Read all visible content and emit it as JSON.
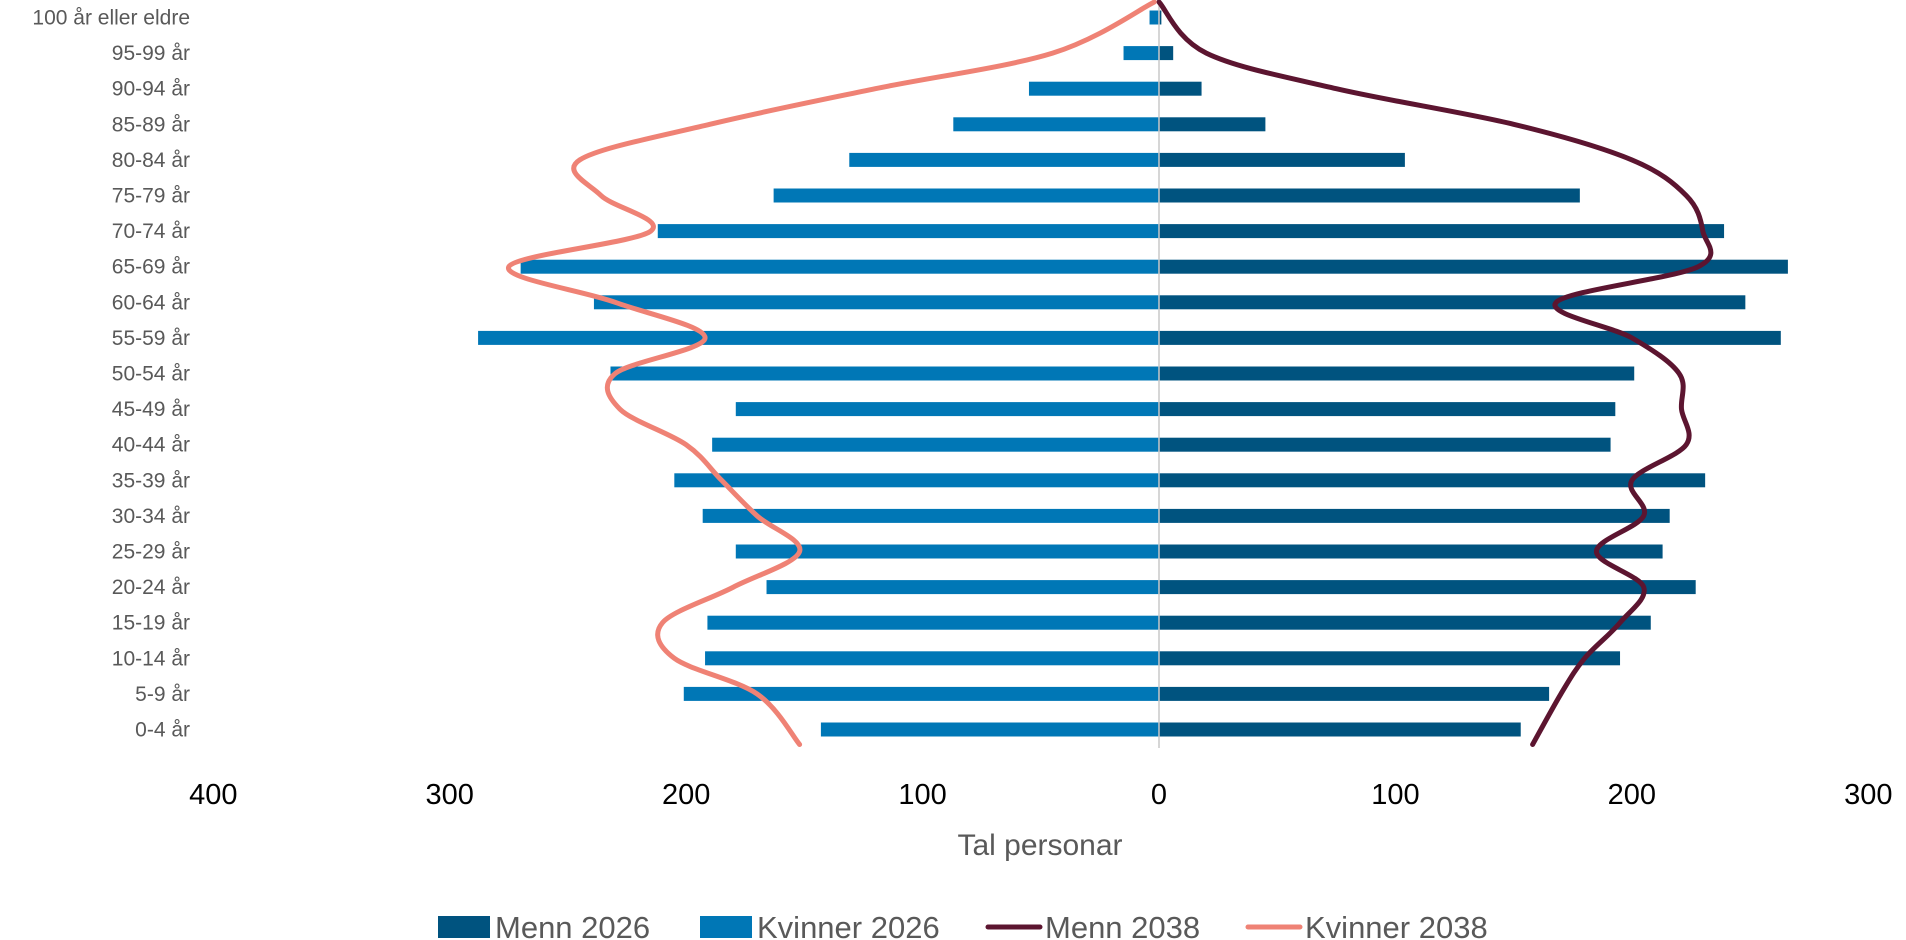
{
  "chart_data": {
    "type": "bar",
    "orientation": "horizontal",
    "layout": "population-pyramid",
    "categories": [
      "100 år eller eldre",
      "95-99 år",
      "90-94 år",
      "85-89 år",
      "80-84 år",
      "75-79 år",
      "70-74 år",
      "65-69 år",
      "60-64 år",
      "55-59 år",
      "50-54 år",
      "45-49 år",
      "40-44 år",
      "35-39 år",
      "30-34 år",
      "25-29 år",
      "20-24 år",
      "15-19 år",
      "10-14 år",
      "5-9 år",
      "0-4 år"
    ],
    "series": [
      {
        "name": "Menn 2026",
        "kind": "bar",
        "side": "right",
        "color": "#00537F",
        "values": [
          1,
          6,
          18,
          45,
          104,
          178,
          239,
          266,
          248,
          263,
          201,
          193,
          191,
          231,
          216,
          213,
          227,
          208,
          195,
          165,
          153
        ]
      },
      {
        "name": "Kvinner 2026",
        "kind": "bar",
        "side": "left",
        "color": "#0077B6",
        "values": [
          4,
          15,
          55,
          87,
          131,
          163,
          212,
          270,
          239,
          288,
          232,
          179,
          189,
          205,
          193,
          179,
          166,
          191,
          192,
          201,
          143
        ]
      },
      {
        "name": "Menn 2038",
        "kind": "line",
        "side": "right",
        "color": "#5C1530",
        "values": [
          0,
          20,
          75,
          150,
          200,
          223,
          230,
          228,
          168,
          200,
          220,
          221,
          223,
          200,
          205,
          185,
          205,
          195,
          180,
          170,
          158
        ]
      },
      {
        "name": "Kvinner 2038",
        "kind": "line",
        "side": "left",
        "color": "#EF8275",
        "values": [
          2,
          45,
          120,
          190,
          245,
          236,
          215,
          275,
          230,
          192,
          230,
          228,
          200,
          185,
          170,
          152,
          180,
          210,
          205,
          170,
          152
        ]
      }
    ],
    "xlabel": "Tal personar",
    "xticks": [
      {
        "label": "400",
        "value": -400
      },
      {
        "label": "300",
        "value": -300
      },
      {
        "label": "200",
        "value": -200
      },
      {
        "label": "100",
        "value": -100
      },
      {
        "label": "0",
        "value": 0
      },
      {
        "label": "100",
        "value": 100
      },
      {
        "label": "200",
        "value": 200
      },
      {
        "label": "300",
        "value": 300
      }
    ],
    "xlim": [
      -400,
      300
    ],
    "grid": false,
    "legend_position": "bottom"
  }
}
